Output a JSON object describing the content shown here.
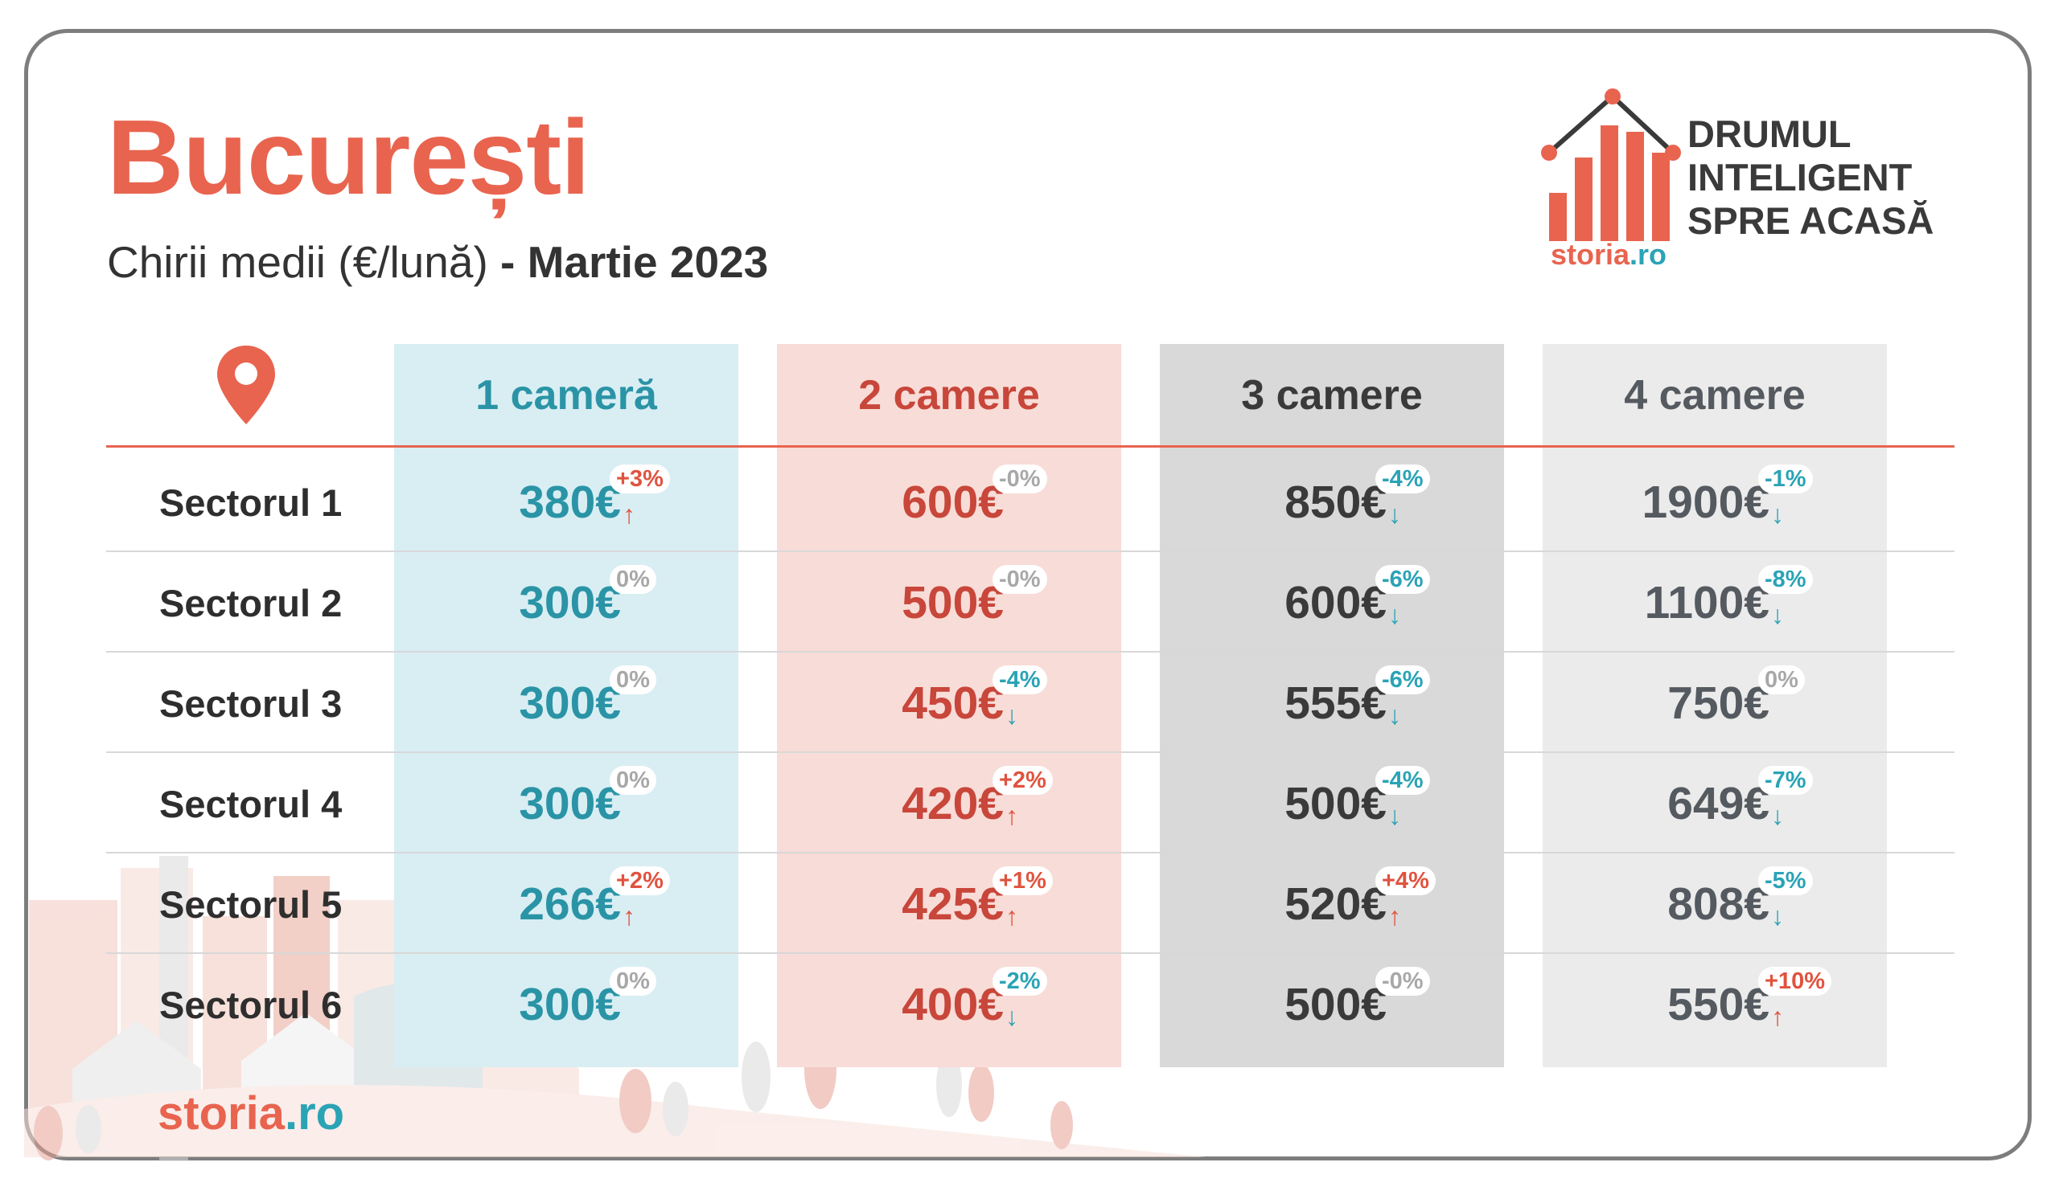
{
  "title": "București",
  "subtitle": {
    "light": "Chirii medii (€/lună)",
    "bold": " - Martie 2023"
  },
  "brand": {
    "line1": "DRUMUL",
    "line2": "INTELIGENT",
    "line3": "SPRE ACASĂ",
    "logo_text_a": "storia",
    "logo_text_b": ".ro"
  },
  "footer": {
    "logo_text_a": "storia",
    "logo_text_b": ".ro"
  },
  "icons": {
    "location": "location-pin-icon"
  },
  "colors": {
    "accent": "#e8644f",
    "teal": "#2a94a6",
    "red": "#c8463a",
    "dark": "#3a3a3a",
    "gray": "#555a60",
    "up": "#e0533f",
    "down": "#2aa3b5",
    "neutral": "#a8a8a8"
  },
  "chart_data": {
    "type": "table",
    "unit": "€",
    "columns": [
      "1 cameră",
      "2 camere",
      "3 camere",
      "4 camere"
    ],
    "rows": [
      {
        "sector": "Sectorul 1",
        "cells": [
          {
            "price": "380€",
            "change": "+3%",
            "dir": "up"
          },
          {
            "price": "600€",
            "change": "-0%",
            "dir": "none"
          },
          {
            "price": "850€",
            "change": "-4%",
            "dir": "down"
          },
          {
            "price": "1900€",
            "change": "-1%",
            "dir": "down"
          }
        ]
      },
      {
        "sector": "Sectorul 2",
        "cells": [
          {
            "price": "300€",
            "change": "0%",
            "dir": "none"
          },
          {
            "price": "500€",
            "change": "-0%",
            "dir": "none"
          },
          {
            "price": "600€",
            "change": "-6%",
            "dir": "down"
          },
          {
            "price": "1100€",
            "change": "-8%",
            "dir": "down"
          }
        ]
      },
      {
        "sector": "Sectorul 3",
        "cells": [
          {
            "price": "300€",
            "change": "0%",
            "dir": "none"
          },
          {
            "price": "450€",
            "change": "-4%",
            "dir": "down"
          },
          {
            "price": "555€",
            "change": "-6%",
            "dir": "down"
          },
          {
            "price": "750€",
            "change": "0%",
            "dir": "none"
          }
        ]
      },
      {
        "sector": "Sectorul 4",
        "cells": [
          {
            "price": "300€",
            "change": "0%",
            "dir": "none"
          },
          {
            "price": "420€",
            "change": "+2%",
            "dir": "up"
          },
          {
            "price": "500€",
            "change": "-4%",
            "dir": "down"
          },
          {
            "price": "649€",
            "change": "-7%",
            "dir": "down"
          }
        ]
      },
      {
        "sector": "Sectorul 5",
        "cells": [
          {
            "price": "266€",
            "change": "+2%",
            "dir": "up"
          },
          {
            "price": "425€",
            "change": "+1%",
            "dir": "up"
          },
          {
            "price": "520€",
            "change": "+4%",
            "dir": "up"
          },
          {
            "price": "808€",
            "change": "-5%",
            "dir": "down"
          }
        ]
      },
      {
        "sector": "Sectorul 6",
        "cells": [
          {
            "price": "300€",
            "change": "0%",
            "dir": "none"
          },
          {
            "price": "400€",
            "change": "-2%",
            "dir": "down"
          },
          {
            "price": "500€",
            "change": "-0%",
            "dir": "none"
          },
          {
            "price": "550€",
            "change": "+10%",
            "dir": "up"
          }
        ]
      }
    ]
  }
}
